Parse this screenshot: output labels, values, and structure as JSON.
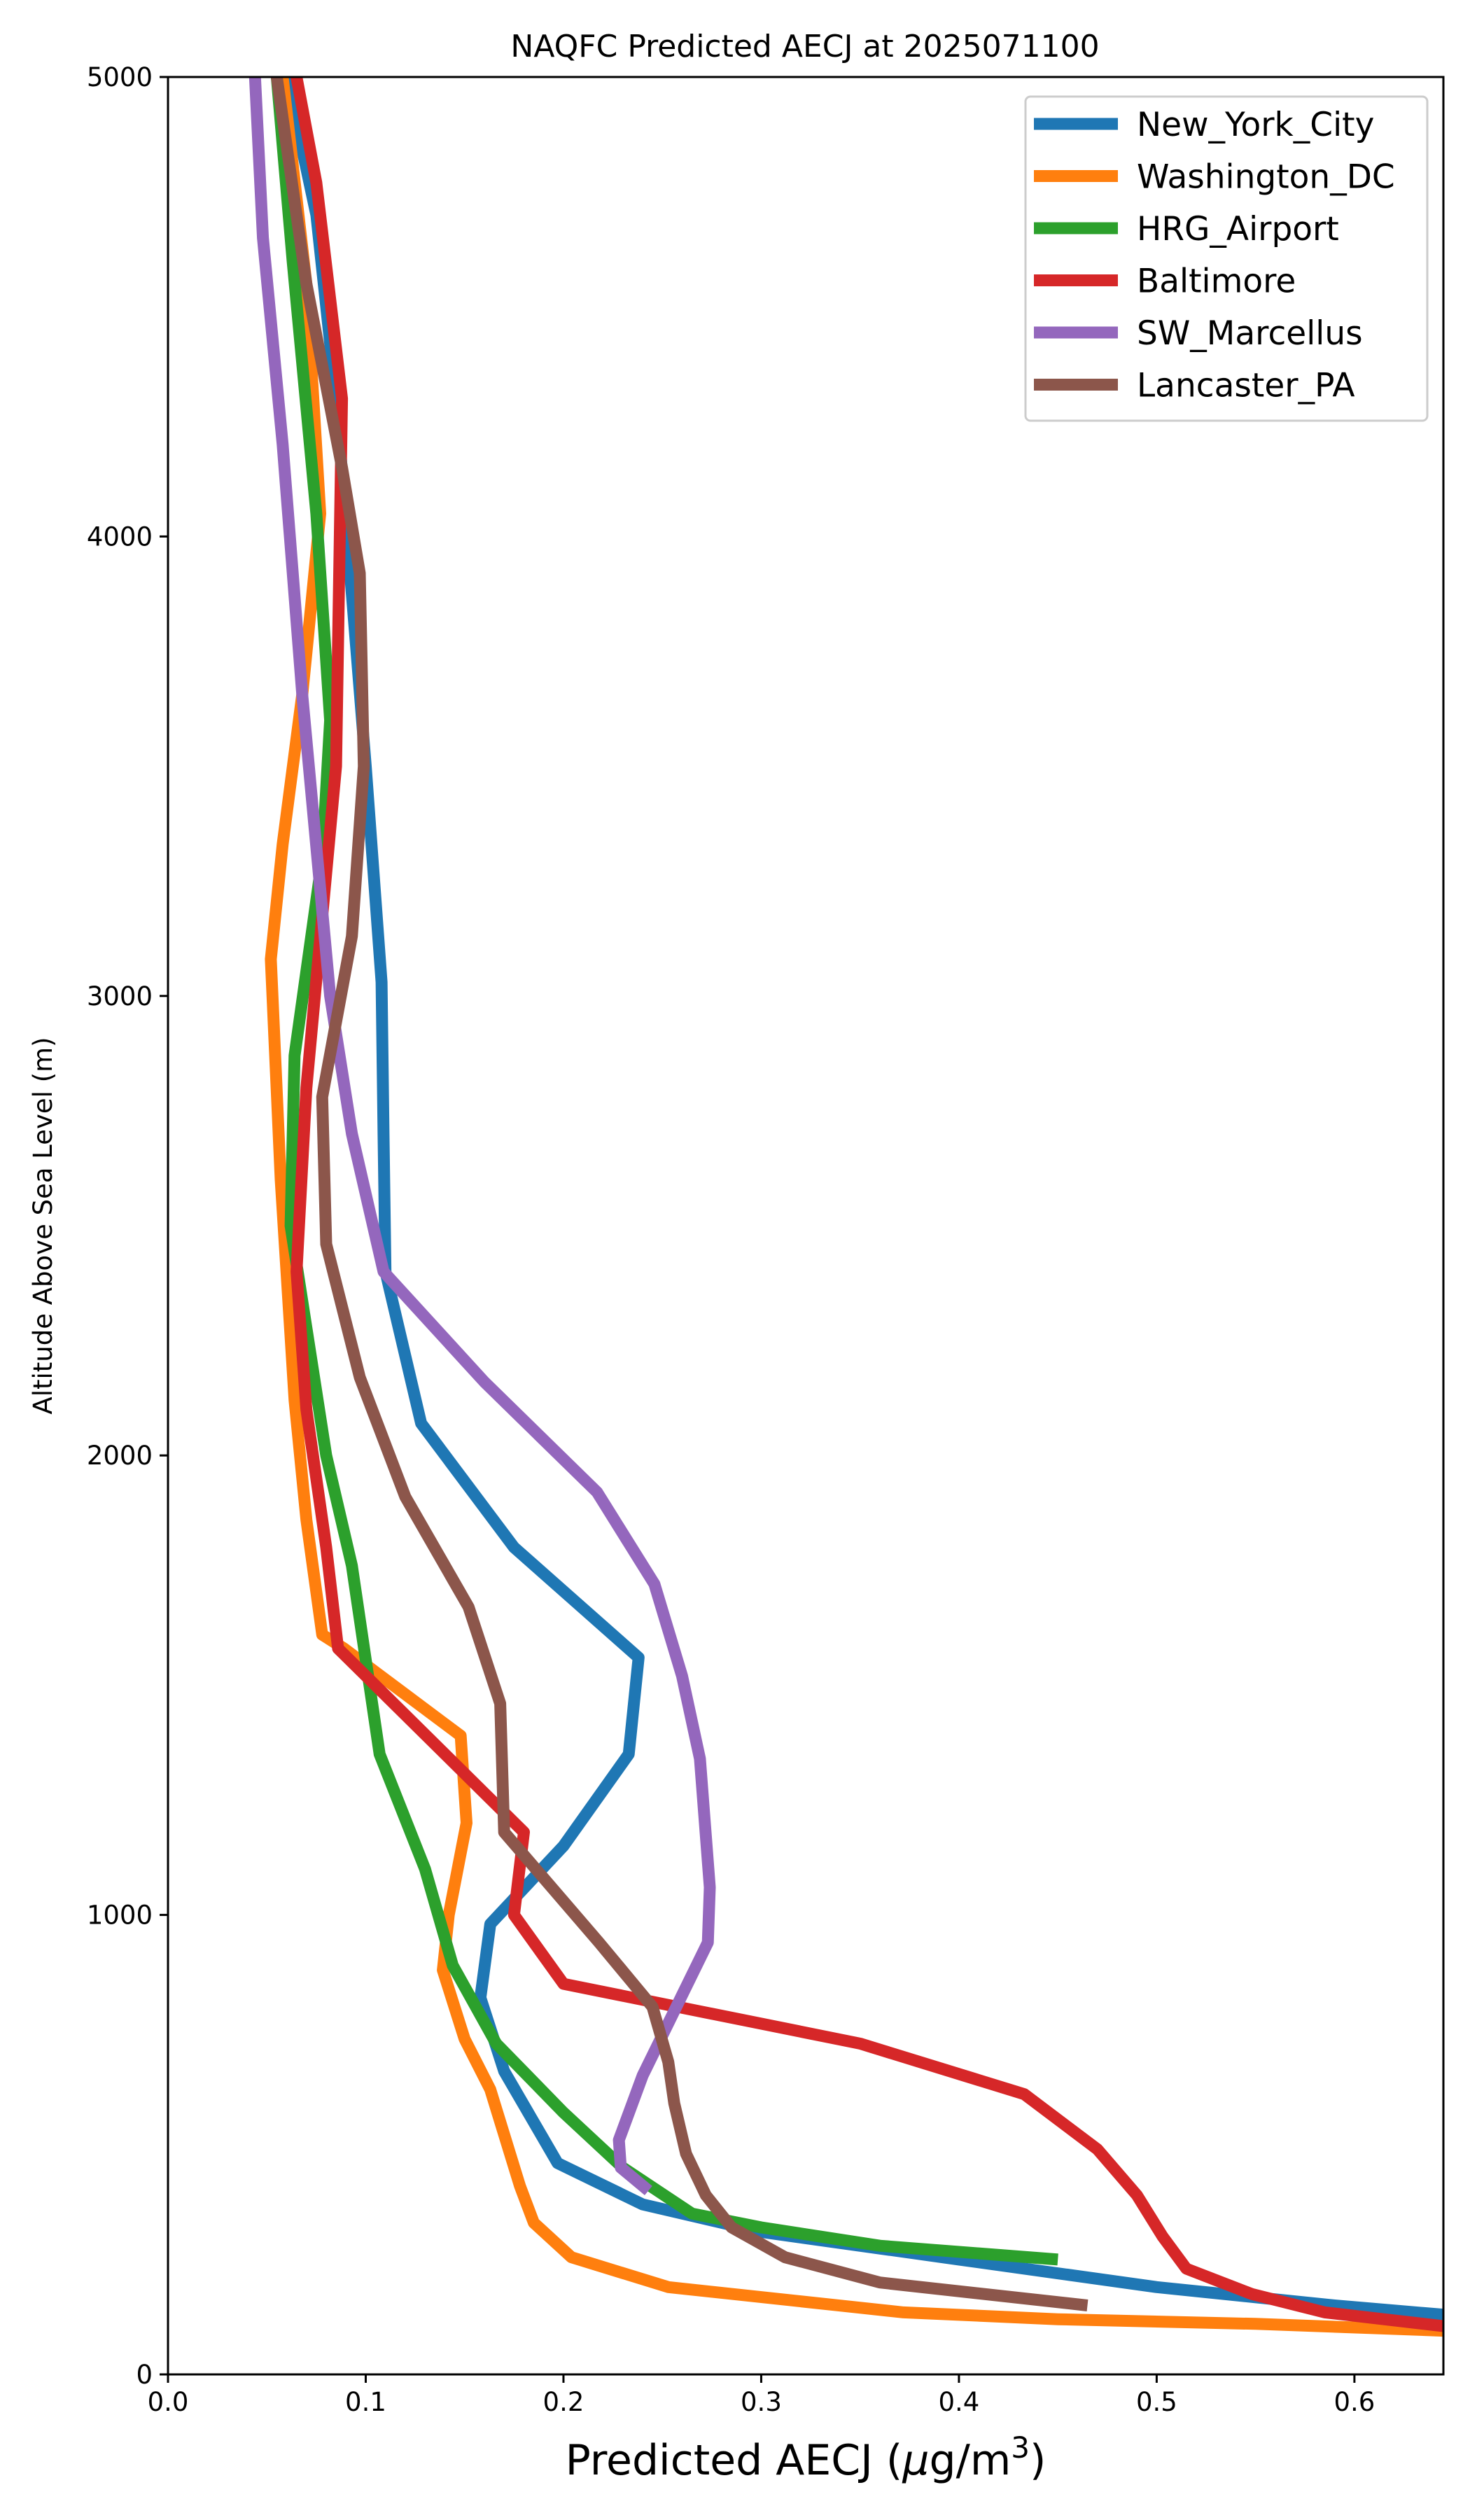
{
  "chart_data": {
    "type": "line",
    "title": "NAQFC Predicted AECJ at 2025071100",
    "xlabel_main": "Predicted AECJ (",
    "xlabel_mu": "μ",
    "xlabel_unit": "g/m",
    "xlabel_sup": "3",
    "xlabel_close": ")",
    "ylabel": "Altitude Above Sea Level (m)",
    "xlim": [
      0,
      0.645
    ],
    "ylim": [
      0,
      5000
    ],
    "xticks": [
      {
        "value": 0.0,
        "label": "0.0"
      },
      {
        "value": 0.1,
        "label": "0.1"
      },
      {
        "value": 0.2,
        "label": "0.2"
      },
      {
        "value": 0.3,
        "label": "0.3"
      },
      {
        "value": 0.4,
        "label": "0.4"
      },
      {
        "value": 0.5,
        "label": "0.5"
      },
      {
        "value": 0.6,
        "label": "0.6"
      }
    ],
    "yticks": [
      {
        "value": 0,
        "label": "0"
      },
      {
        "value": 1000,
        "label": "1000"
      },
      {
        "value": 2000,
        "label": "2000"
      },
      {
        "value": 3000,
        "label": "3000"
      },
      {
        "value": 4000,
        "label": "4000"
      },
      {
        "value": 5000,
        "label": "5000"
      }
    ],
    "grid": false,
    "legend_position": "top-right",
    "series": [
      {
        "name": "New_York_City",
        "color": "#1f77b4",
        "points": [
          [
            0.645,
            130
          ],
          [
            0.59,
            150
          ],
          [
            0.5,
            190
          ],
          [
            0.4,
            250
          ],
          [
            0.3,
            310
          ],
          [
            0.24,
            370
          ],
          [
            0.197,
            460
          ],
          [
            0.17,
            660
          ],
          [
            0.158,
            820
          ],
          [
            0.163,
            980
          ],
          [
            0.2,
            1150
          ],
          [
            0.233,
            1350
          ],
          [
            0.238,
            1560
          ],
          [
            0.175,
            1800
          ],
          [
            0.128,
            2070
          ],
          [
            0.11,
            2400
          ],
          [
            0.109,
            2700
          ],
          [
            0.108,
            3030
          ],
          [
            0.1,
            3500
          ],
          [
            0.085,
            4300
          ],
          [
            0.075,
            4700
          ],
          [
            0.06,
            5000
          ]
        ]
      },
      {
        "name": "Washington_DC",
        "color": "#ff7f0e",
        "points": [
          [
            0.645,
            95
          ],
          [
            0.55,
            110
          ],
          [
            0.45,
            120
          ],
          [
            0.372,
            135
          ],
          [
            0.253,
            190
          ],
          [
            0.204,
            255
          ],
          [
            0.185,
            330
          ],
          [
            0.178,
            410
          ],
          [
            0.163,
            620
          ],
          [
            0.15,
            730
          ],
          [
            0.139,
            880
          ],
          [
            0.142,
            1000
          ],
          [
            0.151,
            1200
          ],
          [
            0.148,
            1390
          ],
          [
            0.089,
            1580
          ],
          [
            0.078,
            1610
          ],
          [
            0.07,
            1860
          ],
          [
            0.064,
            2120
          ],
          [
            0.057,
            2600
          ],
          [
            0.052,
            3080
          ],
          [
            0.058,
            3330
          ],
          [
            0.068,
            3660
          ],
          [
            0.077,
            4050
          ],
          [
            0.07,
            4550
          ],
          [
            0.058,
            5000
          ]
        ]
      },
      {
        "name": "HRG_Airport",
        "color": "#2ca02c",
        "points": [
          [
            0.45,
            250
          ],
          [
            0.36,
            280
          ],
          [
            0.3,
            320
          ],
          [
            0.265,
            350
          ],
          [
            0.23,
            450
          ],
          [
            0.2,
            570
          ],
          [
            0.166,
            720
          ],
          [
            0.144,
            890
          ],
          [
            0.13,
            1100
          ],
          [
            0.107,
            1350
          ],
          [
            0.093,
            1760
          ],
          [
            0.08,
            2000
          ],
          [
            0.062,
            2500
          ],
          [
            0.064,
            2870
          ],
          [
            0.078,
            3300
          ],
          [
            0.082,
            3600
          ],
          [
            0.075,
            4050
          ],
          [
            0.063,
            4600
          ],
          [
            0.055,
            5000
          ]
        ]
      },
      {
        "name": "Baltimore",
        "color": "#d62728",
        "points": [
          [
            0.645,
            105
          ],
          [
            0.585,
            135
          ],
          [
            0.548,
            175
          ],
          [
            0.515,
            230
          ],
          [
            0.503,
            300
          ],
          [
            0.49,
            390
          ],
          [
            0.47,
            490
          ],
          [
            0.433,
            610
          ],
          [
            0.35,
            720
          ],
          [
            0.2,
            850
          ],
          [
            0.175,
            1000
          ],
          [
            0.18,
            1180
          ],
          [
            0.086,
            1580
          ],
          [
            0.08,
            1800
          ],
          [
            0.07,
            2100
          ],
          [
            0.065,
            2400
          ],
          [
            0.07,
            2800
          ],
          [
            0.085,
            3500
          ],
          [
            0.088,
            4300
          ],
          [
            0.075,
            4770
          ],
          [
            0.065,
            5000
          ]
        ]
      },
      {
        "name": "SW_Marcellus",
        "color": "#9467bd",
        "points": [
          [
            0.243,
            400
          ],
          [
            0.229,
            450
          ],
          [
            0.228,
            510
          ],
          [
            0.24,
            650
          ],
          [
            0.273,
            940
          ],
          [
            0.274,
            1060
          ],
          [
            0.269,
            1340
          ],
          [
            0.26,
            1520
          ],
          [
            0.246,
            1720
          ],
          [
            0.217,
            1920
          ],
          [
            0.16,
            2160
          ],
          [
            0.109,
            2400
          ],
          [
            0.093,
            2700
          ],
          [
            0.082,
            3000
          ],
          [
            0.068,
            3650
          ],
          [
            0.058,
            4200
          ],
          [
            0.048,
            4650
          ],
          [
            0.044,
            5000
          ]
        ]
      },
      {
        "name": "Lancaster_PA",
        "color": "#8c564b",
        "points": [
          [
            0.465,
            150
          ],
          [
            0.36,
            200
          ],
          [
            0.312,
            255
          ],
          [
            0.285,
            320
          ],
          [
            0.272,
            390
          ],
          [
            0.262,
            480
          ],
          [
            0.256,
            590
          ],
          [
            0.253,
            680
          ],
          [
            0.245,
            800
          ],
          [
            0.218,
            940
          ],
          [
            0.17,
            1180
          ],
          [
            0.168,
            1460
          ],
          [
            0.152,
            1670
          ],
          [
            0.12,
            1910
          ],
          [
            0.097,
            2170
          ],
          [
            0.08,
            2460
          ],
          [
            0.078,
            2780
          ],
          [
            0.093,
            3130
          ],
          [
            0.099,
            3500
          ],
          [
            0.097,
            3920
          ],
          [
            0.088,
            4150
          ],
          [
            0.07,
            4550
          ],
          [
            0.055,
            5000
          ]
        ]
      }
    ]
  }
}
